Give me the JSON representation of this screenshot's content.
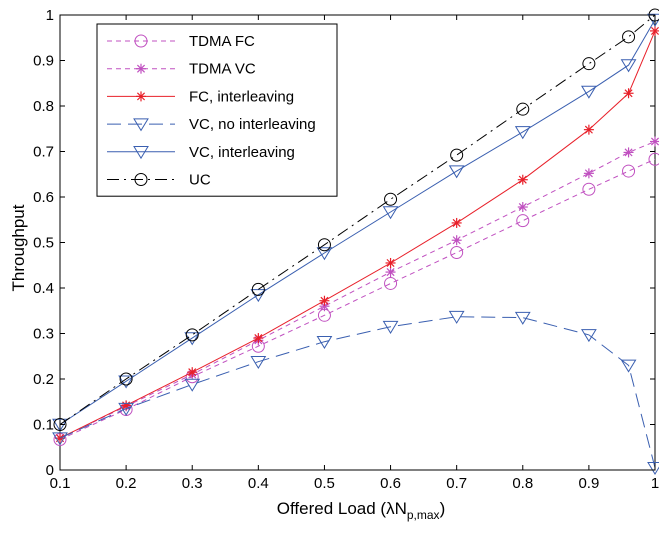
{
  "chart_data": {
    "type": "line",
    "title": "",
    "xlabel": "Offered Load (",
    "xlabel_lambda": "λ",
    "xlabel_N": "N",
    "xlabel_sub": "p,max",
    "xlabel_close": ")",
    "ylabel": "Throughput",
    "xlim": [
      0.1,
      1
    ],
    "ylim": [
      0,
      1
    ],
    "xticks": [
      "0.1",
      "0.2",
      "0.3",
      "0.4",
      "0.5",
      "0.6",
      "0.7",
      "0.8",
      "0.9",
      "1"
    ],
    "yticks": [
      "0",
      "0.1",
      "0.2",
      "0.3",
      "0.4",
      "0.5",
      "0.6",
      "0.7",
      "0.8",
      "0.9",
      "1"
    ],
    "grid": false,
    "legend_position": "top-left",
    "series": [
      {
        "name": "TDMA FC",
        "color": "#c050c0",
        "dash": "dashed",
        "marker": "circle",
        "x": [
          0.1,
          0.2,
          0.3,
          0.4,
          0.5,
          0.6,
          0.7,
          0.8,
          0.9,
          0.96,
          1.0
        ],
        "y": [
          0.067,
          0.133,
          0.205,
          0.272,
          0.34,
          0.41,
          0.478,
          0.548,
          0.617,
          0.657,
          0.683
        ]
      },
      {
        "name": "TDMA VC",
        "color": "#c050c0",
        "dash": "dashed",
        "marker": "star",
        "x": [
          0.1,
          0.2,
          0.3,
          0.4,
          0.5,
          0.6,
          0.7,
          0.8,
          0.9,
          0.96,
          1.0
        ],
        "y": [
          0.07,
          0.14,
          0.21,
          0.285,
          0.36,
          0.435,
          0.505,
          0.578,
          0.652,
          0.698,
          0.722
        ]
      },
      {
        "name": "FC, interleaving",
        "color": "#e8202a",
        "dash": "solid",
        "marker": "star",
        "x": [
          0.1,
          0.2,
          0.3,
          0.4,
          0.5,
          0.6,
          0.7,
          0.8,
          0.9,
          0.96,
          1.0
        ],
        "y": [
          0.07,
          0.142,
          0.215,
          0.29,
          0.372,
          0.455,
          0.543,
          0.638,
          0.748,
          0.828,
          0.965
        ]
      },
      {
        "name": "VC, no interleaving",
        "color": "#3a5fb0",
        "dash": "longdash",
        "marker": "triangle-down",
        "x": [
          0.1,
          0.2,
          0.3,
          0.4,
          0.5,
          0.6,
          0.7,
          0.8,
          0.9,
          0.96,
          1.0
        ],
        "y": [
          0.07,
          0.135,
          0.188,
          0.238,
          0.282,
          0.315,
          0.337,
          0.335,
          0.297,
          0.23,
          0.005
        ]
      },
      {
        "name": "VC, interleaving",
        "color": "#3a5fb0",
        "dash": "solid",
        "marker": "triangle-down",
        "x": [
          0.1,
          0.2,
          0.3,
          0.4,
          0.5,
          0.6,
          0.7,
          0.8,
          0.9,
          0.96,
          1.0
        ],
        "y": [
          0.1,
          0.195,
          0.29,
          0.385,
          0.477,
          0.567,
          0.657,
          0.743,
          0.832,
          0.89,
          0.99
        ]
      },
      {
        "name": "UC",
        "color": "#000000",
        "dash": "dashdot",
        "marker": "circle",
        "x": [
          0.1,
          0.2,
          0.3,
          0.4,
          0.5,
          0.6,
          0.7,
          0.8,
          0.9,
          0.96,
          1.0
        ],
        "y": [
          0.1,
          0.2,
          0.297,
          0.397,
          0.495,
          0.595,
          0.692,
          0.793,
          0.893,
          0.952,
          1.0
        ]
      }
    ]
  }
}
